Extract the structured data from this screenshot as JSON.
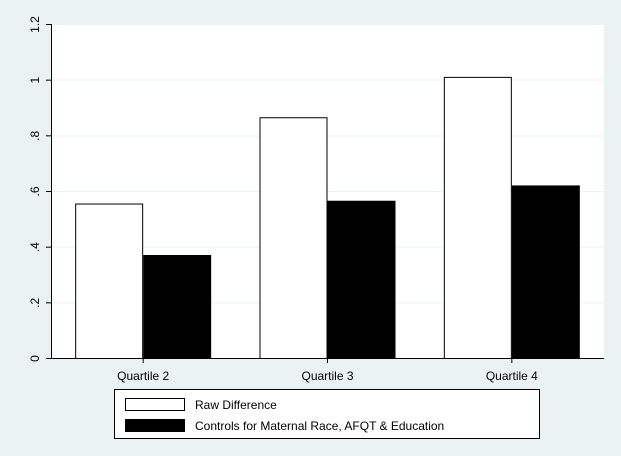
{
  "colors": {
    "background": "#eaf2f3",
    "plot_background": "#ffffff",
    "raw_fill": "#ffffff",
    "controls_fill": "#000000",
    "grid": "#eaf2f3"
  },
  "chart_data": {
    "type": "bar",
    "categories": [
      "Quartile 2",
      "Quartile 3",
      "Quartile 4"
    ],
    "series": [
      {
        "name": "Raw Difference",
        "values": [
          0.555,
          0.865,
          1.01
        ],
        "color": "#ffffff"
      },
      {
        "name": "Controls for Maternal Race, AFQT & Education",
        "values": [
          0.37,
          0.565,
          0.62
        ],
        "color": "#000000"
      }
    ],
    "y_ticks": [
      {
        "value": 0,
        "label": "0"
      },
      {
        "value": 0.2,
        "label": ".2"
      },
      {
        "value": 0.4,
        "label": ".4"
      },
      {
        "value": 0.6,
        "label": ".6"
      },
      {
        "value": 0.8,
        "label": ".8"
      },
      {
        "value": 1.0,
        "label": "1"
      },
      {
        "value": 1.2,
        "label": "1.2"
      }
    ],
    "ylim": [
      0,
      1.2
    ],
    "grid": true,
    "legend_position": "bottom",
    "title": "",
    "xlabel": "",
    "ylabel": ""
  }
}
